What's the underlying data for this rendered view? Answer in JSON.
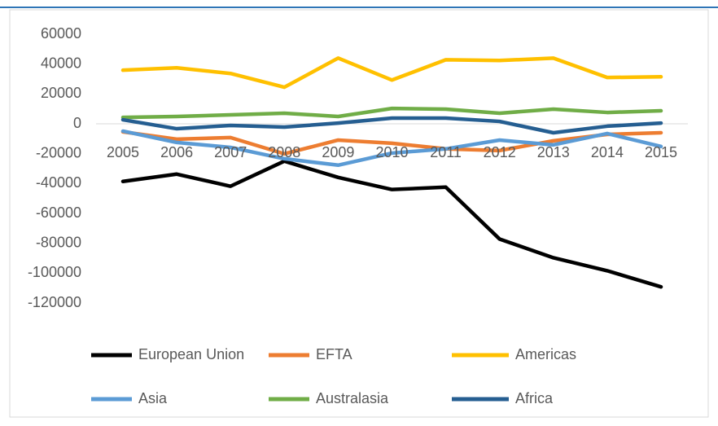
{
  "chart_data": {
    "type": "line",
    "categories": [
      "2005",
      "2006",
      "2007",
      "2008",
      "2009",
      "2010",
      "2011",
      "2012",
      "2013",
      "2014",
      "2015"
    ],
    "series": [
      {
        "name": "European Union",
        "color": "#000000",
        "values": [
          -38600,
          -33700,
          -41800,
          -25000,
          -35900,
          -44000,
          -42400,
          -77200,
          -89700,
          -98400,
          -109200
        ]
      },
      {
        "name": "EFTA",
        "color": "#ed7d31",
        "values": [
          -5400,
          -10300,
          -9200,
          -20100,
          -10900,
          -13000,
          -16800,
          -17900,
          -11400,
          -7100,
          -6000
        ]
      },
      {
        "name": "Americas",
        "color": "#ffc000",
        "values": [
          35900,
          37500,
          33700,
          24500,
          44000,
          29300,
          42900,
          42400,
          44000,
          31000,
          31500
        ]
      },
      {
        "name": "Asia",
        "color": "#5b9bd5",
        "values": [
          -4900,
          -12500,
          -15800,
          -23400,
          -27700,
          -19600,
          -16800,
          -10900,
          -14100,
          -6500,
          -15200
        ]
      },
      {
        "name": "Australasia",
        "color": "#70ad47",
        "values": [
          4300,
          4900,
          6000,
          7100,
          4900,
          10300,
          9800,
          7100,
          9800,
          7600,
          8700
        ]
      },
      {
        "name": "Africa",
        "color": "#255e91",
        "values": [
          2700,
          -3300,
          -1100,
          -2200,
          500,
          3800,
          3800,
          1600,
          -6000,
          -1600,
          500
        ]
      }
    ],
    "ylim": [
      -120000,
      60000
    ],
    "yticks": [
      60000,
      40000,
      20000,
      0,
      -20000,
      -40000,
      -60000,
      -80000,
      -100000,
      -120000
    ],
    "legend": "bottom"
  }
}
